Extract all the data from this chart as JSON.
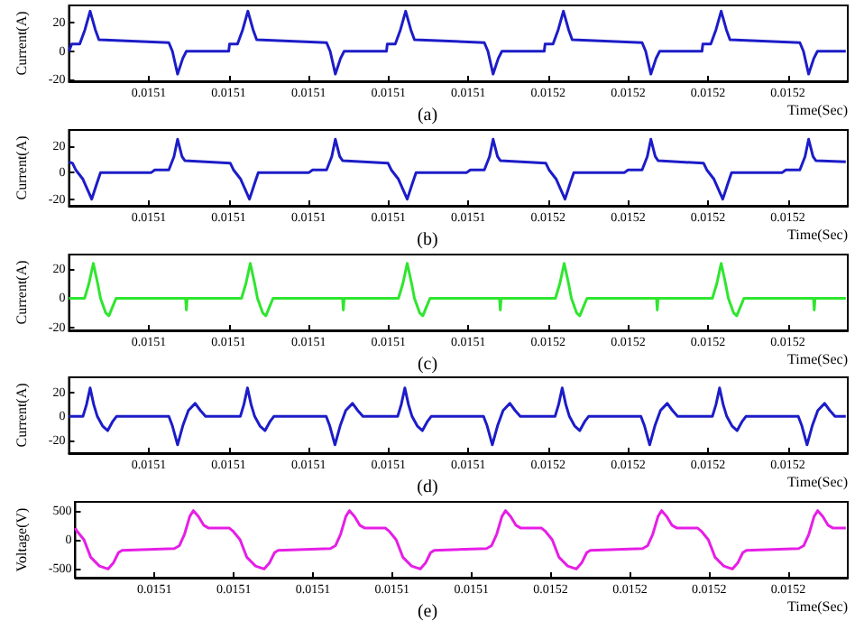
{
  "chart_data": [
    {
      "type": "line",
      "title": "(a)",
      "xlabel": "Time(Sec)",
      "ylabel": "Current(A)",
      "color": "#1c1cc8",
      "marker": "none",
      "grid": false,
      "xlim": [
        0.01504,
        0.015235
      ],
      "ylim": [
        -21,
        32
      ],
      "yticks": [
        -20,
        0,
        20
      ],
      "xticks": [
        {
          "value": 0.01506,
          "label": "0.0151"
        },
        {
          "value": 0.01508,
          "label": "0.0151"
        },
        {
          "value": 0.0151,
          "label": "0.0151"
        },
        {
          "value": 0.01512,
          "label": "0.0151"
        },
        {
          "value": 0.01514,
          "label": "0.0151"
        },
        {
          "value": 0.01516,
          "label": "0.0152"
        },
        {
          "value": 0.01518,
          "label": "0.0152"
        },
        {
          "value": 0.0152,
          "label": "0.0152"
        },
        {
          "value": 0.01522,
          "label": "0.0152"
        }
      ],
      "x": [
        0.01504,
        0.0150407,
        0.0150427,
        0.015044,
        0.0150453,
        0.0150466,
        0.0150475,
        0.015065,
        0.0150659,
        0.0150672,
        0.0150685,
        0.0150694,
        0.01508,
        0.0150802,
        0.0150822,
        0.0150835,
        0.0150848,
        0.0150861,
        0.015087,
        0.0151045,
        0.0151054,
        0.0151067,
        0.015108,
        0.0151089,
        0.0151195,
        0.0151197,
        0.0151217,
        0.015123,
        0.0151243,
        0.0151256,
        0.0151265,
        0.015144,
        0.0151449,
        0.0151462,
        0.0151475,
        0.0151484,
        0.015159,
        0.0151592,
        0.0151612,
        0.0151625,
        0.0151638,
        0.0151651,
        0.015166,
        0.0151835,
        0.0151844,
        0.0151857,
        0.015187,
        0.0151879,
        0.0151985,
        0.0151987,
        0.0152007,
        0.015202,
        0.0152033,
        0.0152046,
        0.0152055,
        0.015223,
        0.0152239,
        0.0152252,
        0.0152265,
        0.0152274,
        0.0152345
      ],
      "values": [
        0,
        5,
        5,
        15,
        28,
        15,
        8,
        6,
        0,
        -16,
        -5,
        0,
        0,
        5,
        5,
        15,
        28,
        15,
        8,
        6,
        0,
        -16,
        -5,
        0,
        0,
        5,
        5,
        15,
        28,
        15,
        8,
        6,
        0,
        -16,
        -5,
        0,
        0,
        5,
        5,
        15,
        28,
        15,
        8,
        6,
        0,
        -16,
        -5,
        0,
        0,
        5,
        5,
        15,
        28,
        15,
        8,
        6,
        0,
        -16,
        -5,
        0,
        0
      ]
    },
    {
      "type": "line",
      "title": "(b)",
      "xlabel": "Time(Sec)",
      "ylabel": "Current(A)",
      "color": "#1c1cc8",
      "marker": "none",
      "grid": false,
      "xlim": [
        0.01504,
        0.015235
      ],
      "ylim": [
        -25,
        32
      ],
      "yticks": [
        -20,
        0,
        20
      ],
      "xticks": [
        {
          "value": 0.01506,
          "label": "0.0151"
        },
        {
          "value": 0.01508,
          "label": "0.0151"
        },
        {
          "value": 0.0151,
          "label": "0.0151"
        },
        {
          "value": 0.01512,
          "label": "0.0151"
        },
        {
          "value": 0.01514,
          "label": "0.0151"
        },
        {
          "value": 0.01516,
          "label": "0.0152"
        },
        {
          "value": 0.01518,
          "label": "0.0152"
        },
        {
          "value": 0.0152,
          "label": "0.0152"
        },
        {
          "value": 0.01522,
          "label": "0.0152"
        }
      ],
      "x": [
        0.01504,
        0.0150409,
        0.0150417,
        0.0150435,
        0.0150457,
        0.015047,
        0.0150479,
        0.0150606,
        0.0150615,
        0.015065,
        0.0150663,
        0.0150672,
        0.0150683,
        0.015069,
        0.0150804,
        0.0150812,
        0.015083,
        0.0150852,
        0.0150865,
        0.0150874,
        0.0151001,
        0.015101,
        0.0151045,
        0.0151058,
        0.0151067,
        0.0151078,
        0.0151085,
        0.0151199,
        0.0151207,
        0.0151225,
        0.0151247,
        0.015126,
        0.0151269,
        0.0151396,
        0.0151405,
        0.015144,
        0.0151453,
        0.0151462,
        0.0151473,
        0.015148,
        0.0151594,
        0.0151602,
        0.015162,
        0.0151642,
        0.0151655,
        0.0151664,
        0.0151791,
        0.01518,
        0.0151835,
        0.0151848,
        0.0151857,
        0.0151868,
        0.0151875,
        0.0151989,
        0.0151997,
        0.0152015,
        0.0152037,
        0.015205,
        0.0152059,
        0.0152186,
        0.0152195,
        0.015223,
        0.0152243,
        0.0152252,
        0.0152263,
        0.015227,
        0.0152345
      ],
      "values": [
        8,
        7,
        2,
        -5,
        -20,
        -8,
        0,
        0,
        2,
        2,
        12,
        25,
        12,
        9,
        7,
        2,
        -5,
        -20,
        -8,
        0,
        0,
        2,
        2,
        12,
        25,
        12,
        9,
        7,
        2,
        -5,
        -20,
        -8,
        0,
        0,
        2,
        2,
        12,
        25,
        12,
        9,
        7,
        2,
        -5,
        -20,
        -8,
        0,
        0,
        2,
        2,
        12,
        25,
        12,
        9,
        7,
        2,
        -5,
        -20,
        -8,
        0,
        0,
        2,
        2,
        12,
        25,
        12,
        9,
        8
      ]
    },
    {
      "type": "line",
      "title": "(c)",
      "xlabel": "Time(Sec)",
      "ylabel": "Current(A)",
      "color": "#2ee62e",
      "marker": "none",
      "grid": false,
      "xlim": [
        0.01504,
        0.015235
      ],
      "ylim": [
        -22,
        30
      ],
      "yticks": [
        -20,
        0,
        20
      ],
      "xticks": [
        {
          "value": 0.01506,
          "label": "0.0151"
        },
        {
          "value": 0.01508,
          "label": "0.0151"
        },
        {
          "value": 0.0151,
          "label": "0.0151"
        },
        {
          "value": 0.01512,
          "label": "0.0151"
        },
        {
          "value": 0.01514,
          "label": "0.0151"
        },
        {
          "value": 0.01516,
          "label": "0.0152"
        },
        {
          "value": 0.01518,
          "label": "0.0152"
        },
        {
          "value": 0.0152,
          "label": "0.0152"
        },
        {
          "value": 0.01522,
          "label": "0.0152"
        }
      ],
      "x": [
        0.01504,
        0.0150439,
        0.015045,
        0.0150461,
        0.0150472,
        0.0150479,
        0.0150492,
        0.01505,
        0.0150509,
        0.0150518,
        0.0150692,
        0.0150694,
        0.0150696,
        0.0150832,
        0.0150843,
        0.0150854,
        0.0150865,
        0.0150872,
        0.0150885,
        0.0150893,
        0.0150902,
        0.0150911,
        0.0151085,
        0.0151087,
        0.0151089,
        0.0151225,
        0.0151236,
        0.0151247,
        0.0151258,
        0.0151265,
        0.0151278,
        0.0151286,
        0.0151295,
        0.0151304,
        0.0151478,
        0.015148,
        0.0151482,
        0.0151618,
        0.0151629,
        0.015164,
        0.0151651,
        0.0151658,
        0.0151671,
        0.0151679,
        0.0151688,
        0.0151697,
        0.0151871,
        0.0151873,
        0.0151875,
        0.0152011,
        0.0152022,
        0.0152033,
        0.0152044,
        0.0152051,
        0.0152064,
        0.0152072,
        0.0152081,
        0.015209,
        0.0152264,
        0.0152266,
        0.0152268,
        0.0152345
      ],
      "values": [
        0,
        0,
        10,
        24,
        10,
        0,
        -10,
        -12,
        -6,
        0,
        0,
        -8,
        0,
        0,
        10,
        24,
        10,
        0,
        -10,
        -12,
        -6,
        0,
        0,
        -8,
        0,
        0,
        10,
        24,
        10,
        0,
        -10,
        -12,
        -6,
        0,
        0,
        -8,
        0,
        0,
        10,
        24,
        10,
        0,
        -10,
        -12,
        -6,
        0,
        0,
        -8,
        0,
        0,
        10,
        24,
        10,
        0,
        -10,
        -12,
        -6,
        0,
        0,
        -8,
        0,
        0
      ]
    },
    {
      "type": "line",
      "title": "(d)",
      "xlabel": "Time(Sec)",
      "ylabel": "Current(A)",
      "color": "#1c1cc8",
      "marker": "none",
      "grid": false,
      "xlim": [
        0.01504,
        0.015235
      ],
      "ylim": [
        -31,
        33
      ],
      "yticks": [
        -20,
        0,
        20
      ],
      "xticks": [
        {
          "value": 0.01506,
          "label": "0.0151"
        },
        {
          "value": 0.01508,
          "label": "0.0151"
        },
        {
          "value": 0.0151,
          "label": "0.0151"
        },
        {
          "value": 0.01512,
          "label": "0.0151"
        },
        {
          "value": 0.01514,
          "label": "0.0151"
        },
        {
          "value": 0.01516,
          "label": "0.0152"
        },
        {
          "value": 0.01518,
          "label": "0.0152"
        },
        {
          "value": 0.0152,
          "label": "0.0152"
        },
        {
          "value": 0.01522,
          "label": "0.0152"
        }
      ],
      "x": [
        0.01504,
        0.0150435,
        0.0150444,
        0.0150453,
        0.0150462,
        0.0150471,
        0.0150484,
        0.0150497,
        0.015051,
        0.0150519,
        0.015065,
        0.0150659,
        0.0150672,
        0.0150685,
        0.0150699,
        0.0150716,
        0.0150729,
        0.0150742,
        0.0150829,
        0.0150838,
        0.0150847,
        0.0150856,
        0.0150865,
        0.0150878,
        0.0150891,
        0.0150904,
        0.0150913,
        0.0151044,
        0.0151053,
        0.0151066,
        0.0151079,
        0.0151093,
        0.015111,
        0.0151123,
        0.0151136,
        0.0151223,
        0.0151232,
        0.0151241,
        0.015125,
        0.0151259,
        0.0151272,
        0.0151285,
        0.0151298,
        0.0151307,
        0.0151438,
        0.0151447,
        0.015146,
        0.0151473,
        0.0151487,
        0.0151504,
        0.0151517,
        0.015153,
        0.0151617,
        0.0151626,
        0.0151635,
        0.0151644,
        0.0151653,
        0.0151666,
        0.0151679,
        0.0151692,
        0.0151701,
        0.0151832,
        0.0151841,
        0.0151854,
        0.0151867,
        0.0151881,
        0.0151898,
        0.0151911,
        0.0151924,
        0.0152011,
        0.015202,
        0.0152029,
        0.0152038,
        0.0152047,
        0.015206,
        0.0152073,
        0.0152086,
        0.0152095,
        0.0152226,
        0.0152235,
        0.0152248,
        0.0152261,
        0.0152275,
        0.0152292,
        0.0152305,
        0.0152318,
        0.0152345
      ],
      "values": [
        0,
        0,
        10,
        24,
        10,
        0,
        -8,
        -12,
        -4,
        0,
        0,
        -8,
        -24,
        -8,
        5,
        11,
        5,
        0,
        0,
        10,
        24,
        10,
        0,
        -8,
        -12,
        -4,
        0,
        0,
        -8,
        -24,
        -8,
        5,
        11,
        5,
        0,
        0,
        10,
        24,
        10,
        0,
        -8,
        -12,
        -4,
        0,
        0,
        -8,
        -24,
        -8,
        5,
        11,
        5,
        0,
        0,
        10,
        24,
        10,
        0,
        -8,
        -12,
        -4,
        0,
        0,
        -8,
        -24,
        -8,
        5,
        11,
        5,
        0,
        0,
        10,
        24,
        10,
        0,
        -8,
        -12,
        -4,
        0,
        0,
        -8,
        -24,
        -8,
        5,
        11,
        5,
        0,
        0
      ]
    },
    {
      "type": "line",
      "title": "(e)",
      "xlabel": "Time(Sec)",
      "ylabel": "Voltage(V)",
      "color": "#e61ee6",
      "marker": "none",
      "grid": false,
      "xlim": [
        0.01504,
        0.015235
      ],
      "ylim": [
        -650,
        650
      ],
      "yticks": [
        -500,
        0,
        500
      ],
      "xticks": [
        {
          "value": 0.01506,
          "label": "0.0151"
        },
        {
          "value": 0.01508,
          "label": "0.0151"
        },
        {
          "value": 0.0151,
          "label": "0.0151"
        },
        {
          "value": 0.01512,
          "label": "0.0151"
        },
        {
          "value": 0.01514,
          "label": "0.0151"
        },
        {
          "value": 0.01516,
          "label": "0.0152"
        },
        {
          "value": 0.01518,
          "label": "0.0152"
        },
        {
          "value": 0.0152,
          "label": "0.0152"
        },
        {
          "value": 0.01522,
          "label": "0.0152"
        }
      ],
      "x": [
        0.01504,
        0.0150404,
        0.0150422,
        0.0150439,
        0.0150461,
        0.0150483,
        0.0150496,
        0.0150509,
        0.0150518,
        0.015065,
        0.0150663,
        0.0150676,
        0.0150689,
        0.0150698,
        0.0150711,
        0.0150724,
        0.0150737,
        0.0150789,
        0.0150798,
        0.0150816,
        0.0150833,
        0.0150855,
        0.0150877,
        0.015089,
        0.0150903,
        0.0150912,
        0.0151044,
        0.0151057,
        0.015107,
        0.0151083,
        0.0151092,
        0.0151105,
        0.0151118,
        0.0151131,
        0.0151183,
        0.0151192,
        0.015121,
        0.0151227,
        0.0151249,
        0.0151271,
        0.0151284,
        0.0151297,
        0.0151306,
        0.0151438,
        0.0151451,
        0.0151464,
        0.0151477,
        0.0151486,
        0.0151499,
        0.0151512,
        0.0151525,
        0.0151577,
        0.0151586,
        0.0151604,
        0.0151621,
        0.0151643,
        0.0151665,
        0.0151678,
        0.0151691,
        0.01517,
        0.0151832,
        0.0151845,
        0.0151858,
        0.0151871,
        0.015188,
        0.0151893,
        0.0151906,
        0.0151919,
        0.0151971,
        0.015198,
        0.0151998,
        0.0152015,
        0.0152037,
        0.0152059,
        0.0152072,
        0.0152085,
        0.0152094,
        0.0152226,
        0.0152239,
        0.0152252,
        0.0152265,
        0.0152274,
        0.0152287,
        0.01523,
        0.0152313,
        0.0152345
      ],
      "values": [
        200,
        150,
        0,
        -300,
        -450,
        -500,
        -400,
        -220,
        -180,
        -150,
        -100,
        100,
        400,
        500,
        400,
        250,
        200,
        200,
        150,
        0,
        -300,
        -450,
        -500,
        -400,
        -220,
        -180,
        -150,
        -100,
        100,
        400,
        500,
        400,
        250,
        200,
        200,
        150,
        0,
        -300,
        -450,
        -500,
        -400,
        -220,
        -180,
        -150,
        -100,
        100,
        400,
        500,
        400,
        250,
        200,
        200,
        150,
        0,
        -300,
        -450,
        -500,
        -400,
        -220,
        -180,
        -150,
        -100,
        100,
        400,
        500,
        400,
        250,
        200,
        200,
        150,
        0,
        -300,
        -450,
        -500,
        -400,
        -220,
        -180,
        -150,
        -100,
        100,
        400,
        500,
        400,
        250,
        200,
        200
      ]
    }
  ]
}
